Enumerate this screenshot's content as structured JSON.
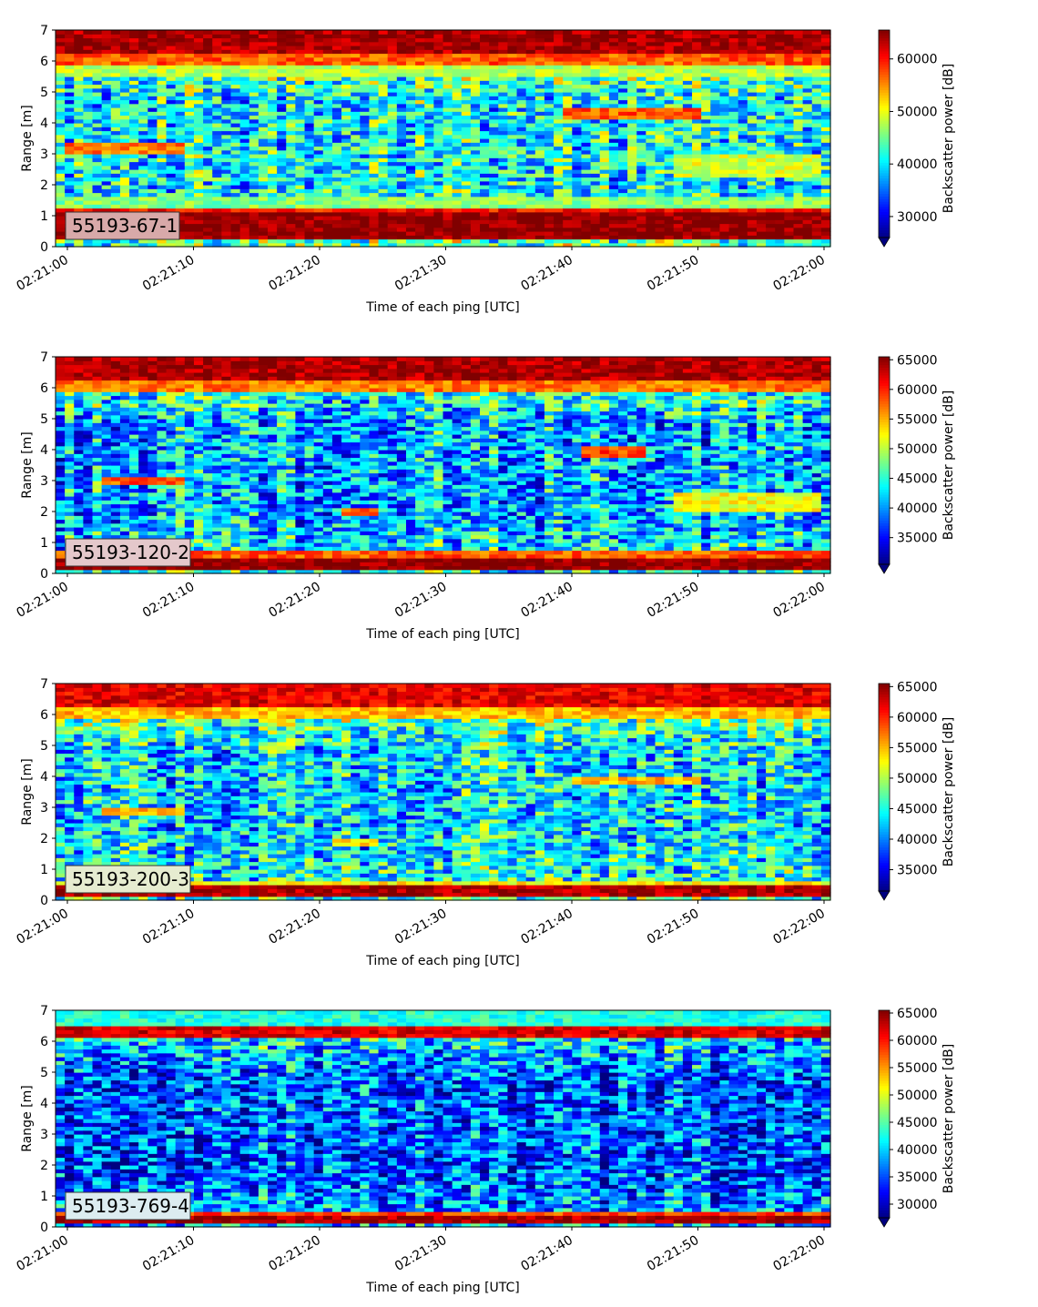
{
  "chart_data": [
    {
      "type": "heatmap",
      "label": "55193-67-1",
      "xlabel": "Time of each ping [UTC]",
      "ylabel": "Range [m]",
      "colorbar_label": "Backscatter power [dB]",
      "colormap": "jet",
      "xlim": [
        "02:21:00",
        "02:22:00"
      ],
      "xticks": [
        "02:21:00",
        "02:21:10",
        "02:21:20",
        "02:21:30",
        "02:21:40",
        "02:21:50",
        "02:22:00"
      ],
      "ylim": [
        0,
        7
      ],
      "yticks": [
        0,
        1,
        2,
        3,
        4,
        5,
        6,
        7
      ],
      "clim": [
        26000,
        65500
      ],
      "cticks": [
        30000,
        40000,
        50000,
        60000
      ],
      "label_box_color": "#d8a9a9",
      "features": [
        {
          "range_m": [
            0.25,
            1.1
          ],
          "value": 65000
        },
        {
          "range_m": [
            1.1,
            1.25
          ],
          "value": 60000
        },
        {
          "range_m": [
            1.25,
            1.6
          ],
          "value": 46000
        },
        {
          "range_m": [
            6.2,
            7.0
          ],
          "value": 64000
        },
        {
          "range_m": [
            5.9,
            6.2
          ],
          "value": 57000
        },
        {
          "range_m": [
            5.5,
            5.9
          ],
          "value": 48000
        },
        {
          "range_m": [
            3.0,
            3.4
          ],
          "value": 56000,
          "time_s": [
            0,
            9
          ]
        },
        {
          "range_m": [
            4.1,
            4.45
          ],
          "value": 57000,
          "time_s": [
            39,
            50
          ]
        },
        {
          "range_m": [
            2.2,
            3.0
          ],
          "value": 49000,
          "time_s": [
            48,
            60
          ]
        }
      ]
    },
    {
      "type": "heatmap",
      "label": "55193-120-2",
      "xlabel": "Time of each ping [UTC]",
      "ylabel": "Range [m]",
      "colorbar_label": "Backscatter power [dB]",
      "colormap": "jet",
      "xlim": [
        "02:21:00",
        "02:22:00"
      ],
      "xticks": [
        "02:21:00",
        "02:21:10",
        "02:21:20",
        "02:21:30",
        "02:21:40",
        "02:21:50",
        "02:22:00"
      ],
      "ylim": [
        0,
        7
      ],
      "yticks": [
        0,
        1,
        2,
        3,
        4,
        5,
        6,
        7
      ],
      "clim": [
        30500,
        65500
      ],
      "cticks": [
        35000,
        40000,
        45000,
        50000,
        55000,
        60000,
        65000
      ],
      "label_box_color": "#e4c8cb",
      "features": [
        {
          "range_m": [
            0.1,
            0.55
          ],
          "value": 65000
        },
        {
          "range_m": [
            0.55,
            0.7
          ],
          "value": 58000
        },
        {
          "range_m": [
            6.25,
            7.0
          ],
          "value": 64000
        },
        {
          "range_m": [
            5.9,
            6.25
          ],
          "value": 57000
        },
        {
          "range_m": [
            2.85,
            3.1
          ],
          "value": 58000,
          "time_s": [
            3,
            9
          ]
        },
        {
          "range_m": [
            1.85,
            2.1
          ],
          "value": 57000,
          "time_s": [
            22,
            25
          ]
        },
        {
          "range_m": [
            3.8,
            4.1
          ],
          "value": 59000,
          "time_s": [
            41,
            46
          ]
        },
        {
          "range_m": [
            2.0,
            2.6
          ],
          "value": 52000,
          "time_s": [
            48,
            60
          ]
        }
      ]
    },
    {
      "type": "heatmap",
      "label": "55193-200-3",
      "xlabel": "Time of each ping [UTC]",
      "ylabel": "Range [m]",
      "colorbar_label": "Backscatter power [dB]",
      "colormap": "jet",
      "xlim": [
        "02:21:00",
        "02:22:00"
      ],
      "xticks": [
        "02:21:00",
        "02:21:10",
        "02:21:20",
        "02:21:30",
        "02:21:40",
        "02:21:50",
        "02:22:00"
      ],
      "ylim": [
        0,
        7
      ],
      "yticks": [
        0,
        1,
        2,
        3,
        4,
        5,
        6,
        7
      ],
      "clim": [
        31500,
        65500
      ],
      "cticks": [
        35000,
        40000,
        45000,
        50000,
        55000,
        60000,
        65000
      ],
      "label_box_color": "#e6ecd0",
      "features": [
        {
          "range_m": [
            0.15,
            0.45
          ],
          "value": 64000
        },
        {
          "range_m": [
            0.45,
            0.6
          ],
          "value": 53000
        },
        {
          "range_m": [
            6.3,
            7.0
          ],
          "value": 62000
        },
        {
          "range_m": [
            5.9,
            6.3
          ],
          "value": 55000
        },
        {
          "range_m": [
            2.8,
            3.05
          ],
          "value": 56000,
          "time_s": [
            3,
            9
          ]
        },
        {
          "range_m": [
            1.8,
            2.05
          ],
          "value": 54000,
          "time_s": [
            21,
            25
          ]
        },
        {
          "range_m": [
            3.8,
            4.05
          ],
          "value": 55000,
          "time_s": [
            40,
            50
          ]
        }
      ]
    },
    {
      "type": "heatmap",
      "label": "55193-769-4",
      "xlabel": "Time of each ping [UTC]",
      "ylabel": "Range [m]",
      "colorbar_label": "Backscatter power [dB]",
      "colormap": "jet",
      "xlim": [
        "02:21:00",
        "02:22:00"
      ],
      "xticks": [
        "02:21:00",
        "02:21:10",
        "02:21:20",
        "02:21:30",
        "02:21:40",
        "02:21:50",
        "02:22:00"
      ],
      "ylim": [
        0,
        7
      ],
      "yticks": [
        0,
        1,
        2,
        3,
        4,
        5,
        6,
        7
      ],
      "clim": [
        27500,
        65500
      ],
      "cticks": [
        30000,
        35000,
        40000,
        45000,
        50000,
        55000,
        60000,
        65000
      ],
      "label_box_color": "#dcecf0",
      "features": [
        {
          "range_m": [
            0.15,
            0.35
          ],
          "value": 64000
        },
        {
          "range_m": [
            0.35,
            0.5
          ],
          "value": 58000
        },
        {
          "range_m": [
            6.1,
            6.45
          ],
          "value": 62000
        },
        {
          "range_m": [
            6.45,
            7.0
          ],
          "value": 43000
        }
      ]
    }
  ]
}
